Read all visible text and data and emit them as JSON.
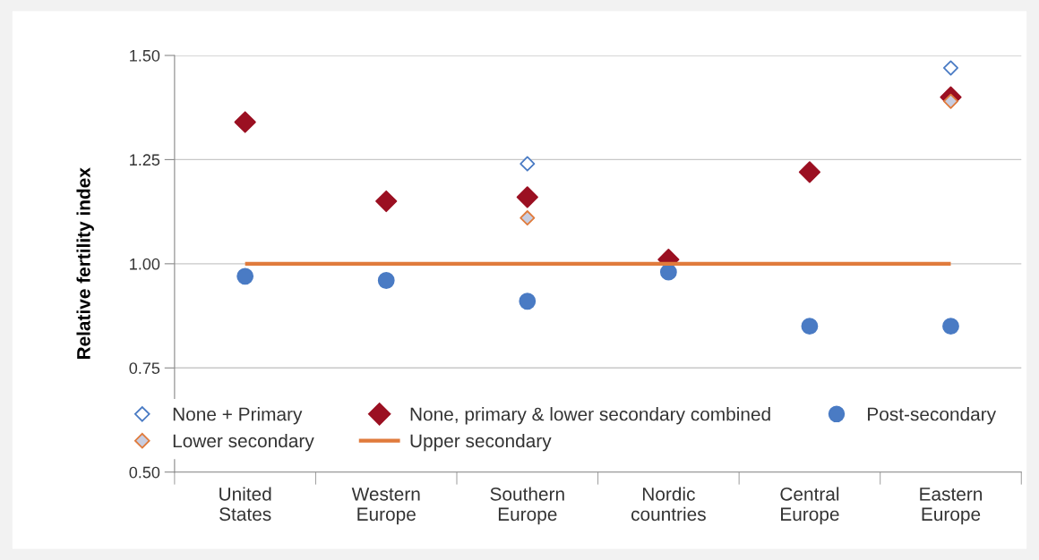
{
  "chart_data": {
    "type": "scatter",
    "ylabel": "Relative fertility index",
    "categories": [
      "United\nStates",
      "Western\nEurope",
      "Southern\nEurope",
      "Nordic\ncountries",
      "Central\nEurope",
      "Eastern\nEurope"
    ],
    "series": [
      {
        "name": "None + Primary",
        "marker": "diamond",
        "color": "#4a7bc4",
        "values": [
          null,
          null,
          1.24,
          null,
          null,
          1.47
        ]
      },
      {
        "name": "Lower secondary",
        "marker": "diamond",
        "color": "#e07b3c",
        "values": [
          null,
          null,
          1.11,
          null,
          null,
          1.39
        ]
      },
      {
        "name": "None, primary & lower secondary combined",
        "marker": "diamond",
        "color": "#9b1022",
        "values": [
          1.34,
          1.15,
          1.16,
          1.01,
          1.22,
          1.4
        ]
      },
      {
        "name": "Upper secondary",
        "type": "line",
        "marker": "none",
        "color": "#e07b3c",
        "values": [
          1.0,
          1.0,
          1.0,
          1.0,
          1.0,
          1.0
        ]
      },
      {
        "name": "Post-secondary",
        "marker": "circle",
        "color": "#4a7bc4",
        "values": [
          0.97,
          0.96,
          0.91,
          0.98,
          0.85,
          0.85
        ]
      }
    ],
    "ylim": [
      0.5,
      1.5
    ],
    "yticks": [
      {
        "value": 0.5,
        "label": "0.50"
      },
      {
        "value": 0.75,
        "label": "0.75"
      },
      {
        "value": 1.0,
        "label": "1.00"
      },
      {
        "value": 1.25,
        "label": "1.25"
      },
      {
        "value": 1.5,
        "label": "1.50"
      }
    ],
    "grid": "y",
    "legend": "bottom right"
  }
}
